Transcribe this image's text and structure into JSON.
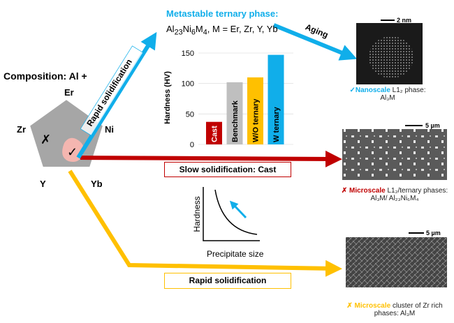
{
  "composition": {
    "title": "Composition: Al +",
    "elements": [
      "Er",
      "Ni",
      "Yb",
      "Y",
      "Zr"
    ]
  },
  "top": {
    "title": "Metastable ternary phase:",
    "formula_main": "Al",
    "formula_parts": [
      "23",
      "Ni",
      "6",
      "M",
      "4"
    ],
    "formula_rest": ", M = Er, Zr, Y, Yb",
    "arrow_label": "Rapid solidification",
    "aging_label": "Aging"
  },
  "tem": {
    "scale": "2 nm",
    "caption_highlight": "Nanoscale",
    "caption_rest": " L1₂ phase: Al₃M"
  },
  "cast": {
    "box_label": "Slow solidification: Cast",
    "scale": "5 µm",
    "caption_highlight": "Microscale",
    "caption_rest": " L1₂/ternary phases:",
    "caption_line2": "Al₃M/ Al₂₃Ni₆M₄"
  },
  "rapid": {
    "box_label": "Rapid solidification",
    "scale": "5 µm",
    "caption_highlight": "Microscale",
    "caption_rest": " cluster of Zr rich",
    "caption_line2": "phases: Al₃M"
  },
  "inset": {
    "ylabel": "Hardness",
    "xlabel": "Precipitate size"
  },
  "colors": {
    "blue": "#10aeea",
    "red": "#c00000",
    "yellow": "#ffc000",
    "gray": "#bfbfbf",
    "pentagon": "#a6a6a6",
    "blob": "#f4b6b0"
  },
  "chart_data": {
    "type": "bar",
    "ylabel": "Hardness (HV)",
    "ylim": [
      0,
      150
    ],
    "yticks": [
      0,
      50,
      100,
      150
    ],
    "grid": true,
    "categories": [
      "Cast",
      "Benchmark",
      "W/O ternary",
      "W ternary"
    ],
    "values": [
      37,
      102,
      110,
      147
    ],
    "bar_colors": [
      "#c00000",
      "#bfbfbf",
      "#ffc000",
      "#10aeea"
    ]
  }
}
